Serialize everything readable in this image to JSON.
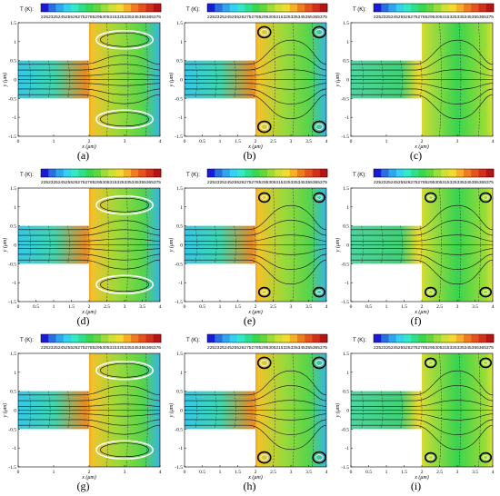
{
  "figure": {
    "colorbar_label": "T (K):",
    "colorbar_ticks": "22523252452552627527852953053153253353453553653​75",
    "colorbar_colors": [
      "#1b1bd6",
      "#2a6fe0",
      "#2fa5ee",
      "#34d0f2",
      "#33e8c6",
      "#2ee08a",
      "#37d84e",
      "#63d63a",
      "#9bdc36",
      "#cde033",
      "#f0dc2e",
      "#f7b026",
      "#ef7d20",
      "#e4531c",
      "#d2301a",
      "#b51414"
    ],
    "y_axis_label": "y (μm)",
    "x_axis_label": "x (μm)",
    "y_ticks": [
      "1.5",
      "1",
      "0.5",
      "0",
      "-0.5",
      "-1",
      "-1.5"
    ],
    "panels": [
      {
        "id": "a",
        "label": "(a)",
        "x_ticks": [
          "0",
          "1",
          "2",
          "3",
          "4"
        ],
        "vortex_style": "large",
        "hot_side": "left"
      },
      {
        "id": "b",
        "label": "(b)",
        "x_ticks": [
          "0",
          "0.5",
          "1",
          "1.5",
          "2",
          "2.5",
          "3",
          "3.5",
          "4"
        ],
        "vortex_style": "corner",
        "hot_side": "left"
      },
      {
        "id": "c",
        "label": "(c)",
        "x_ticks": [
          "0",
          "1",
          "2",
          "3",
          "4"
        ],
        "vortex_style": "none",
        "hot_side": "both"
      },
      {
        "id": "d",
        "label": "(d)",
        "x_ticks": [
          "0",
          "0.5",
          "1",
          "1.5",
          "2",
          "2.5",
          "3",
          "3.5",
          "4"
        ],
        "vortex_style": "large",
        "hot_side": "left"
      },
      {
        "id": "e",
        "label": "(e)",
        "x_ticks": [
          "0",
          "0.5",
          "1",
          "1.5",
          "2",
          "2.5",
          "3",
          "3.5",
          "4"
        ],
        "vortex_style": "corner-small",
        "hot_side": "left"
      },
      {
        "id": "f",
        "label": "(f)",
        "x_ticks": [
          "0",
          "0.5",
          "1",
          "1.5",
          "2",
          "2.5",
          "3",
          "3.5",
          "4"
        ],
        "vortex_style": "corner-small",
        "hot_side": "both"
      },
      {
        "id": "g",
        "label": "(g)",
        "x_ticks": [
          "0",
          "1",
          "2",
          "3",
          "4"
        ],
        "vortex_style": "large",
        "hot_side": "left"
      },
      {
        "id": "h",
        "label": "(h)",
        "x_ticks": [
          "0",
          "0.5",
          "1",
          "1.5",
          "2",
          "2.5",
          "3",
          "3.5",
          "4"
        ],
        "vortex_style": "corner",
        "hot_side": "left"
      },
      {
        "id": "i",
        "label": "(i)",
        "x_ticks": [
          "0",
          "0.5",
          "1",
          "1.5",
          "2",
          "2.5",
          "3",
          "3.5",
          "4"
        ],
        "vortex_style": "corner-small",
        "hot_side": "both"
      }
    ]
  }
}
